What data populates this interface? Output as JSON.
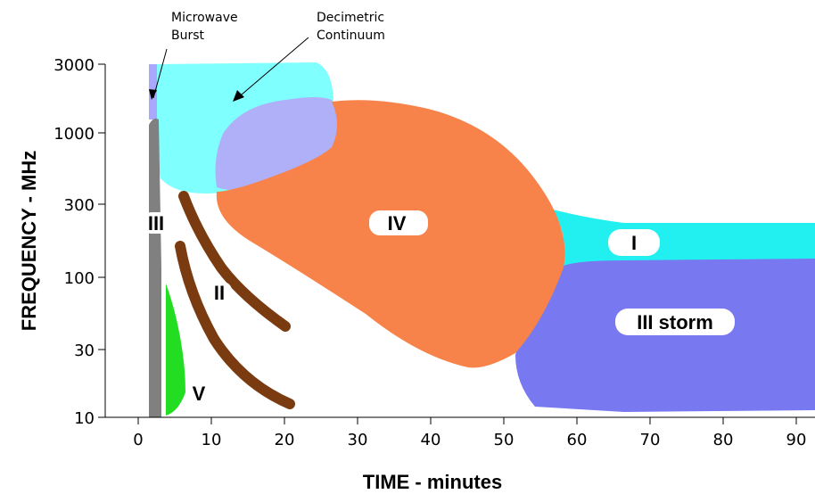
{
  "diagram": {
    "x_axis": {
      "title": "TIME - minutes",
      "ticks": [
        "0",
        "10",
        "20",
        "30",
        "40",
        "50",
        "60",
        "70",
        "80",
        "90"
      ]
    },
    "y_axis": {
      "title": "FREQUENCY - MHz",
      "ticks": [
        "3000",
        "1000",
        "300",
        "100",
        "30",
        "10"
      ],
      "scale": "log"
    },
    "annotations": {
      "microwave_burst": "Microwave\nBurst",
      "decimetric_continuum": "Decimetric\nContinuum"
    },
    "regions": [
      {
        "key": "III",
        "label": "III",
        "color": "#808080"
      },
      {
        "key": "II",
        "label": "II",
        "color": "#7a3b10"
      },
      {
        "key": "V",
        "label": "V",
        "color": "#22dd22"
      },
      {
        "key": "IV",
        "label": "IV",
        "color": "#f8834a"
      },
      {
        "key": "I",
        "label": "I",
        "color": "#22f0f0"
      },
      {
        "key": "III_storm",
        "label": "III storm",
        "color": "#7878f0"
      },
      {
        "key": "decimetric",
        "label": "",
        "color": "#80ffff"
      },
      {
        "key": "overlap",
        "label": "",
        "color": "#b0b0f8"
      },
      {
        "key": "microwave",
        "label": "",
        "color": "#a8a8ff"
      }
    ]
  }
}
